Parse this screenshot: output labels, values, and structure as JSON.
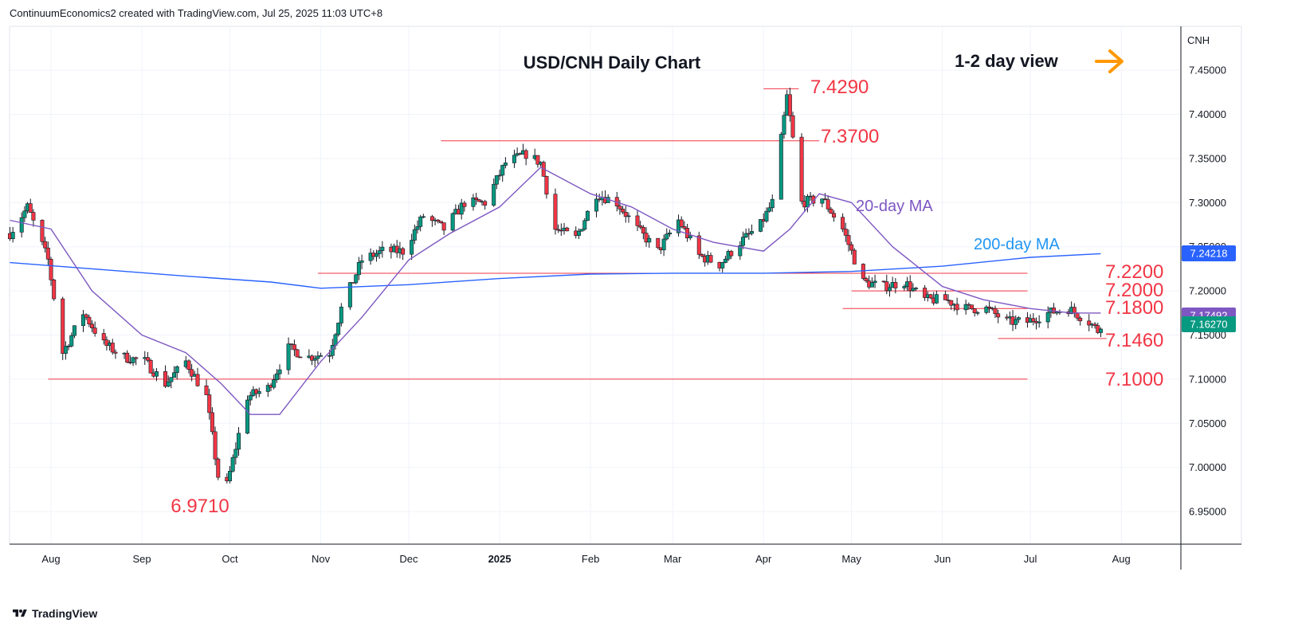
{
  "header": {
    "credit": "ContinuumEconomics2 created with TradingView.com, Jul 25, 2025 11:03 UTC+8"
  },
  "footer": {
    "brand": "TradingView",
    "logo_icon": "tradingview-logo-icon"
  },
  "chart_data": {
    "type": "candlestick",
    "title": "USD/CNH Daily Chart",
    "view_label": "1-2 day view",
    "view_arrow_icon": "arrow-right-icon",
    "currency": "CNH",
    "ylim": [
      6.91,
      7.485
    ],
    "y_ticks": [
      "7.45000",
      "7.40000",
      "7.35000",
      "7.30000",
      "7.25000",
      "7.20000",
      "7.15000",
      "7.10000",
      "7.05000",
      "7.00000",
      "6.95000"
    ],
    "x_ticks": [
      "Aug",
      "Sep",
      "Oct",
      "Nov",
      "Dec",
      "2025",
      "Feb",
      "Mar",
      "Apr",
      "May",
      "Jun",
      "Jul",
      "Aug"
    ],
    "colors": {
      "up": "#089981",
      "down": "#f23645",
      "ma20": "#7e57c2",
      "ma200": "#2962ff",
      "level": "#f23645",
      "level_text": "#f23645",
      "arrow": "#ff9800"
    },
    "levels": [
      {
        "label": "7.4290",
        "value": 7.429,
        "from": "2025-04-01",
        "to": "2025-04-13"
      },
      {
        "label": "7.3700",
        "value": 7.37,
        "from": "2024-12-12",
        "to": "2025-04-20"
      },
      {
        "label": "7.2200",
        "value": 7.22,
        "from": "2024-10-31",
        "to": "2025-06-30"
      },
      {
        "label": "7.2000",
        "value": 7.2,
        "from": "2025-05-01",
        "to": "2025-06-30"
      },
      {
        "label": "7.1800",
        "value": 7.18,
        "from": "2025-04-28",
        "to": "2025-06-30"
      },
      {
        "label": "7.1460",
        "value": 7.146,
        "from": "2025-06-20",
        "to": "2025-07-27"
      },
      {
        "label": "7.1000",
        "value": 7.1,
        "from": "2024-07-31",
        "to": "2025-06-30"
      },
      {
        "label": "6.9710",
        "value": 6.971,
        "from": "",
        "to": ""
      }
    ],
    "ma_labels": {
      "ma20": "20-day MA",
      "ma200": "200-day MA"
    },
    "last_price": {
      "label": "7.16270",
      "value": 7.1627,
      "color": "#089981"
    },
    "ma200_last": {
      "label": "7.24218",
      "value": 7.24218,
      "color": "#2962ff"
    },
    "ma20_last": {
      "label": "7.17492",
      "value": 7.17492,
      "color": "#7e57c2"
    },
    "key_points": [
      {
        "date": "2024-07-18",
        "price": 7.265
      },
      {
        "date": "2024-07-24",
        "price": 7.295
      },
      {
        "date": "2024-07-31",
        "price": 7.235
      },
      {
        "date": "2024-08-05",
        "price": 7.13
      },
      {
        "date": "2024-08-12",
        "price": 7.175
      },
      {
        "date": "2024-08-19",
        "price": 7.14
      },
      {
        "date": "2024-08-26",
        "price": 7.125
      },
      {
        "date": "2024-09-02",
        "price": 7.12
      },
      {
        "date": "2024-09-09",
        "price": 7.095
      },
      {
        "date": "2024-09-16",
        "price": 7.12
      },
      {
        "date": "2024-09-23",
        "price": 7.08
      },
      {
        "date": "2024-09-27",
        "price": 6.99
      },
      {
        "date": "2024-09-30",
        "price": 6.98
      },
      {
        "date": "2024-10-07",
        "price": 7.08
      },
      {
        "date": "2024-10-14",
        "price": 7.09
      },
      {
        "date": "2024-10-21",
        "price": 7.135
      },
      {
        "date": "2024-10-28",
        "price": 7.125
      },
      {
        "date": "2024-11-04",
        "price": 7.13
      },
      {
        "date": "2024-11-08",
        "price": 7.18
      },
      {
        "date": "2024-11-15",
        "price": 7.235
      },
      {
        "date": "2024-11-22",
        "price": 7.245
      },
      {
        "date": "2024-11-29",
        "price": 7.245
      },
      {
        "date": "2024-12-06",
        "price": 7.285
      },
      {
        "date": "2024-12-13",
        "price": 7.27
      },
      {
        "date": "2024-12-20",
        "price": 7.3
      },
      {
        "date": "2024-12-27",
        "price": 7.3
      },
      {
        "date": "2025-01-03",
        "price": 7.345
      },
      {
        "date": "2025-01-10",
        "price": 7.355
      },
      {
        "date": "2025-01-15",
        "price": 7.345
      },
      {
        "date": "2025-01-20",
        "price": 7.27
      },
      {
        "date": "2025-01-27",
        "price": 7.26
      },
      {
        "date": "2025-02-03",
        "price": 7.31
      },
      {
        "date": "2025-02-10",
        "price": 7.3
      },
      {
        "date": "2025-02-17",
        "price": 7.27
      },
      {
        "date": "2025-02-24",
        "price": 7.245
      },
      {
        "date": "2025-03-03",
        "price": 7.28
      },
      {
        "date": "2025-03-10",
        "price": 7.24
      },
      {
        "date": "2025-03-17",
        "price": 7.23
      },
      {
        "date": "2025-03-24",
        "price": 7.255
      },
      {
        "date": "2025-03-31",
        "price": 7.275
      },
      {
        "date": "2025-04-04",
        "price": 7.3
      },
      {
        "date": "2025-04-09",
        "price": 7.42
      },
      {
        "date": "2025-04-14",
        "price": 7.3
      },
      {
        "date": "2025-04-21",
        "price": 7.305
      },
      {
        "date": "2025-04-28",
        "price": 7.27
      },
      {
        "date": "2025-05-05",
        "price": 7.21
      },
      {
        "date": "2025-05-12",
        "price": 7.205
      },
      {
        "date": "2025-05-19",
        "price": 7.21
      },
      {
        "date": "2025-05-26",
        "price": 7.19
      },
      {
        "date": "2025-06-02",
        "price": 7.19
      },
      {
        "date": "2025-06-09",
        "price": 7.18
      },
      {
        "date": "2025-06-16",
        "price": 7.18
      },
      {
        "date": "2025-06-23",
        "price": 7.165
      },
      {
        "date": "2025-06-30",
        "price": 7.165
      },
      {
        "date": "2025-07-07",
        "price": 7.175
      },
      {
        "date": "2025-07-14",
        "price": 7.18
      },
      {
        "date": "2025-07-21",
        "price": 7.165
      },
      {
        "date": "2025-07-24",
        "price": 7.155
      },
      {
        "date": "2025-07-25",
        "price": 7.1627
      }
    ],
    "ma20": [
      {
        "date": "2024-07-18",
        "price": 7.28
      },
      {
        "date": "2024-08-01",
        "price": 7.27
      },
      {
        "date": "2024-08-15",
        "price": 7.2
      },
      {
        "date": "2024-09-01",
        "price": 7.15
      },
      {
        "date": "2024-09-16",
        "price": 7.13
      },
      {
        "date": "2024-09-28",
        "price": 7.095
      },
      {
        "date": "2024-10-08",
        "price": 7.06
      },
      {
        "date": "2024-10-18",
        "price": 7.06
      },
      {
        "date": "2024-11-01",
        "price": 7.12
      },
      {
        "date": "2024-11-15",
        "price": 7.17
      },
      {
        "date": "2024-12-01",
        "price": 7.235
      },
      {
        "date": "2024-12-15",
        "price": 7.265
      },
      {
        "date": "2025-01-01",
        "price": 7.295
      },
      {
        "date": "2025-01-15",
        "price": 7.34
      },
      {
        "date": "2025-02-01",
        "price": 7.31
      },
      {
        "date": "2025-02-15",
        "price": 7.295
      },
      {
        "date": "2025-03-01",
        "price": 7.27
      },
      {
        "date": "2025-03-15",
        "price": 7.255
      },
      {
        "date": "2025-04-01",
        "price": 7.245
      },
      {
        "date": "2025-04-10",
        "price": 7.27
      },
      {
        "date": "2025-04-20",
        "price": 7.31
      },
      {
        "date": "2025-05-01",
        "price": 7.3
      },
      {
        "date": "2025-05-15",
        "price": 7.25
      },
      {
        "date": "2025-06-01",
        "price": 7.205
      },
      {
        "date": "2025-06-15",
        "price": 7.19
      },
      {
        "date": "2025-07-01",
        "price": 7.18
      },
      {
        "date": "2025-07-15",
        "price": 7.175
      },
      {
        "date": "2025-07-25",
        "price": 7.17492
      }
    ],
    "ma200": [
      {
        "date": "2024-07-18",
        "price": 7.232
      },
      {
        "date": "2024-08-15",
        "price": 7.225
      },
      {
        "date": "2024-09-15",
        "price": 7.217
      },
      {
        "date": "2024-10-15",
        "price": 7.21
      },
      {
        "date": "2024-11-01",
        "price": 7.203
      },
      {
        "date": "2024-12-01",
        "price": 7.207
      },
      {
        "date": "2025-01-01",
        "price": 7.214
      },
      {
        "date": "2025-02-01",
        "price": 7.219
      },
      {
        "date": "2025-03-01",
        "price": 7.22
      },
      {
        "date": "2025-04-01",
        "price": 7.22
      },
      {
        "date": "2025-05-01",
        "price": 7.222
      },
      {
        "date": "2025-06-01",
        "price": 7.228
      },
      {
        "date": "2025-07-01",
        "price": 7.238
      },
      {
        "date": "2025-07-25",
        "price": 7.24218
      }
    ]
  }
}
